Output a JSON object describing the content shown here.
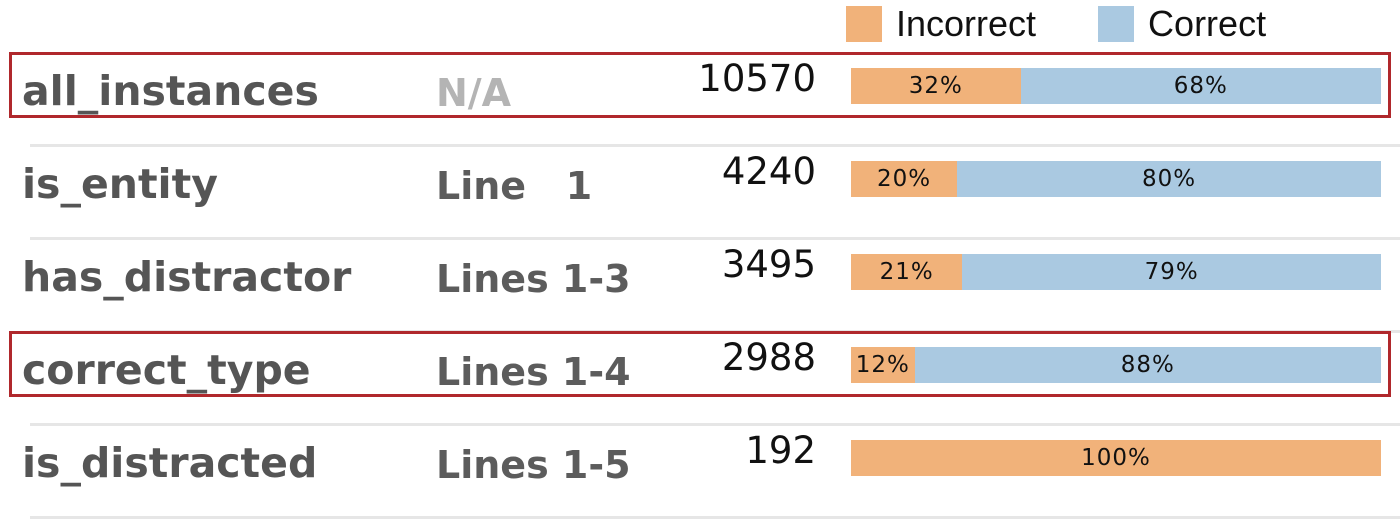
{
  "colors": {
    "incorrect": "#f1b27a",
    "correct": "#aac9e1",
    "highlight": "#b0282c"
  },
  "legend": {
    "incorrect_label": "Incorrect",
    "correct_label": "Correct"
  },
  "chart_data": {
    "type": "bar",
    "stacked": true,
    "orientation": "horizontal",
    "categories": [
      "all_instances",
      "is_entity",
      "has_distractor",
      "correct_type",
      "is_distracted"
    ],
    "lines": [
      "N/A",
      "Line   1",
      "Lines 1-3",
      "Lines 1-4",
      "Lines 1-5"
    ],
    "counts": [
      "10570",
      "4240",
      "3495",
      "2988",
      "192"
    ],
    "series": [
      {
        "name": "Incorrect",
        "values": [
          32,
          20,
          21,
          12,
          100
        ],
        "labels": [
          "32%",
          "20%",
          "21%",
          "12%",
          "100%"
        ]
      },
      {
        "name": "Correct",
        "values": [
          68,
          80,
          79,
          88,
          0
        ],
        "labels": [
          "68%",
          "80%",
          "79%",
          "88%",
          ""
        ]
      }
    ],
    "highlighted": [
      "all_instances",
      "correct_type"
    ],
    "legend_position": "top-right"
  }
}
